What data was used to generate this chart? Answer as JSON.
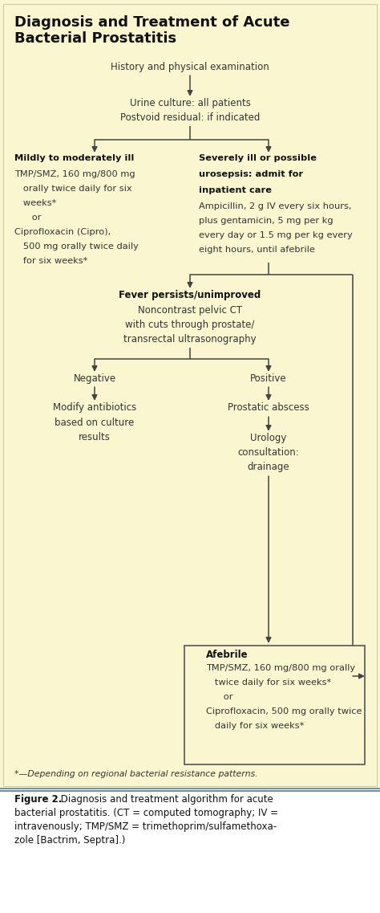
{
  "bg_color": "#faf6d0",
  "arrow_color": "#444444",
  "text_color": "#333333",
  "bold_color": "#111111",
  "title_line1": "Diagnosis and Treatment of Acute",
  "title_line2": "Bacterial Prostatitis",
  "caption_bold": "Figure 2.",
  "caption_rest": " Diagnosis and treatment algorithm for acute bacterial prostatitis. (CT = computed tomography; IV = intravenously; TMP/SMZ = trimethoprim/sulfamethoxazole [Bactrim, Septra].)",
  "footnote": "*—Depending on regional bacterial resistance patterns.",
  "separator_color": "#4a6fa5",
  "box_edge_color": "#555555"
}
